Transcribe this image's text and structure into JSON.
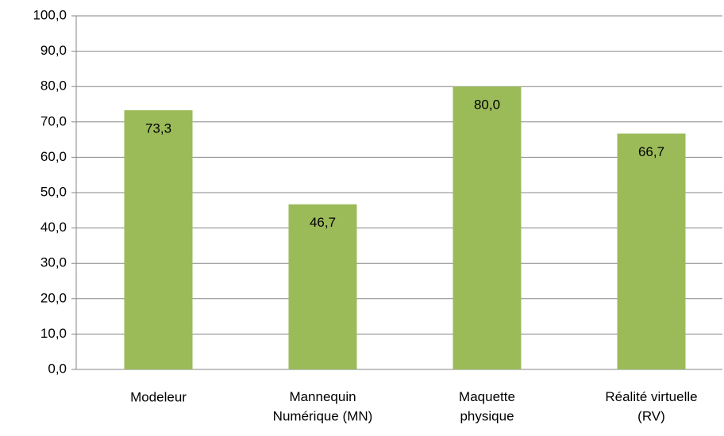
{
  "chart_data": {
    "type": "bar",
    "categories": [
      "Modeleur",
      "Mannequin\nNumérique (MN)",
      "Maquette\nphysique",
      "Réalité virtuelle\n(RV)"
    ],
    "values": [
      73.3,
      46.7,
      80.0,
      66.7
    ],
    "value_labels": [
      "73,3",
      "46,7",
      "80,0",
      "66,7"
    ],
    "color": "#9bbb59",
    "ylim": [
      0,
      100
    ],
    "yticks": [
      {
        "value": 0,
        "label": "0,0"
      },
      {
        "value": 10,
        "label": "10,0"
      },
      {
        "value": 20,
        "label": "20,0"
      },
      {
        "value": 30,
        "label": "30,0"
      },
      {
        "value": 40,
        "label": "40,0"
      },
      {
        "value": 50,
        "label": "50,0"
      },
      {
        "value": 60,
        "label": "60,0"
      },
      {
        "value": 70,
        "label": "70,0"
      },
      {
        "value": 80,
        "label": "80,0"
      },
      {
        "value": 90,
        "label": "90,0"
      },
      {
        "value": 100,
        "label": "100,0"
      }
    ],
    "grid": true
  }
}
